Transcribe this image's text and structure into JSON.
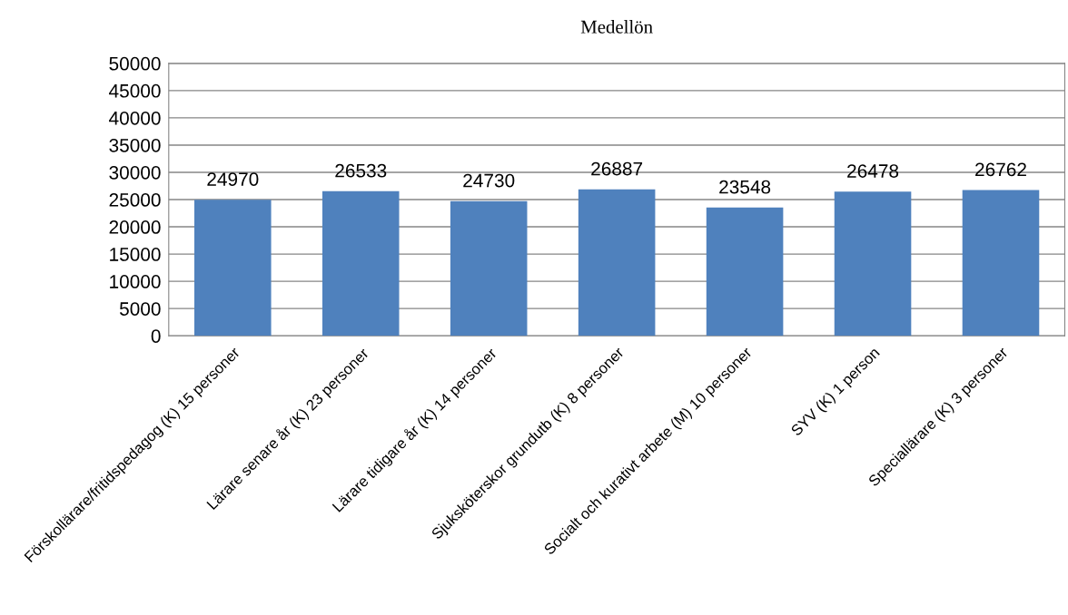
{
  "chart_data": {
    "type": "bar",
    "title": "Medellön",
    "categories": [
      "Förskollärare/fritidspedagog (K) 15 personer",
      "Lärare senare år (K) 23 personer",
      "Lärare tidigare år (K) 14 personer",
      "Sjuksköterskor grundutb (K) 8 personer",
      "Socialt och kurativt arbete (M) 10 personer",
      "SYV (K) 1 person",
      "Speciallärare (K) 3 personer"
    ],
    "values": [
      24970,
      26533,
      24730,
      26887,
      23548,
      26478,
      26762
    ],
    "color": "#4f81bd",
    "ylim": [
      0,
      50000
    ],
    "yticks": [
      0,
      5000,
      10000,
      15000,
      20000,
      25000,
      30000,
      35000,
      40000,
      45000,
      50000
    ],
    "grid": "y",
    "data_labels": true
  }
}
